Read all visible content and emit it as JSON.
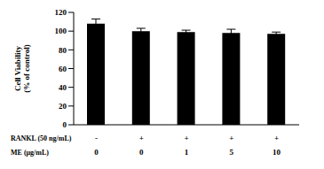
{
  "chart_data": {
    "type": "bar",
    "y_label": "Cell Viability\n(% of control)",
    "category_rows": [
      {
        "name": "RANKL (50 ng/mL)",
        "labels": [
          "-",
          "+",
          "+",
          "+",
          "+"
        ]
      },
      {
        "name": "ME (μg/mL)",
        "labels": [
          "0",
          "0",
          "1",
          "5",
          "10"
        ]
      }
    ],
    "values": [
      108,
      100,
      99,
      98,
      97
    ],
    "error": [
      5,
      3,
      2,
      4,
      2
    ],
    "color": "#000000",
    "ylim": [
      0,
      120
    ],
    "yticks": [
      0,
      20,
      40,
      60,
      80,
      100,
      120
    ],
    "grid": false
  }
}
